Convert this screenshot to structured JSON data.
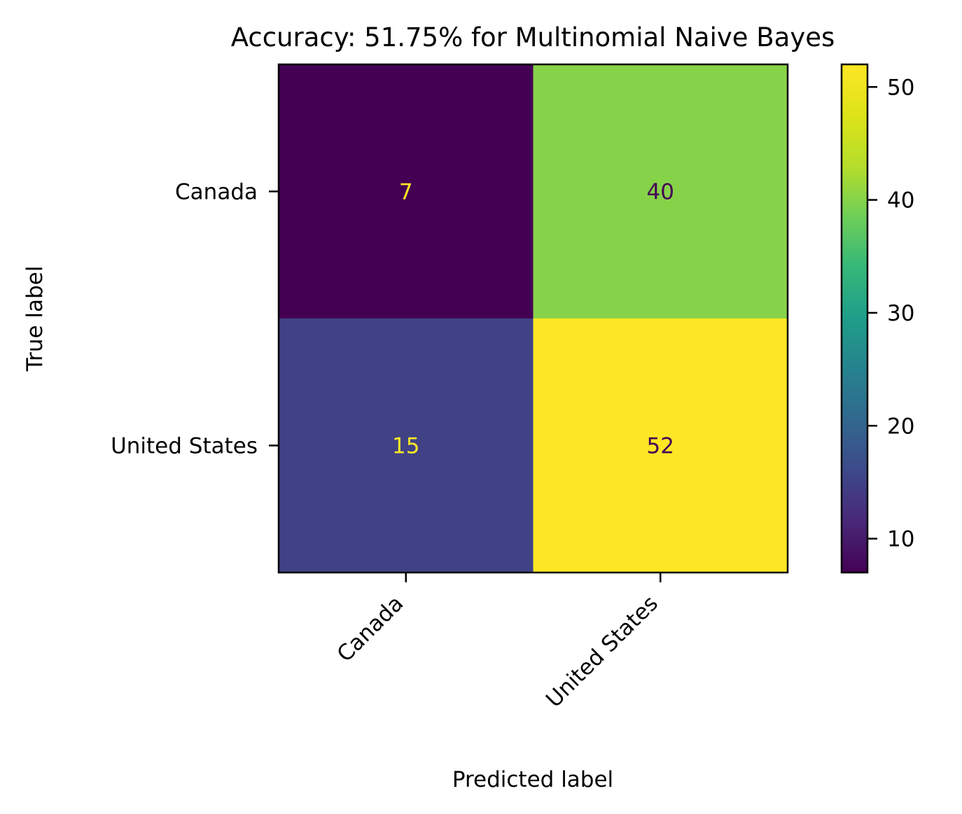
{
  "chart_data": {
    "type": "heatmap",
    "title": "Accuracy: 51.75% for Multinomial Naive Bayes",
    "xlabel": "Predicted label",
    "ylabel": "True label",
    "x_categories": [
      "Canada",
      "United States"
    ],
    "y_categories": [
      "Canada",
      "United States"
    ],
    "values": [
      [
        7,
        40
      ],
      [
        15,
        52
      ]
    ],
    "colormap": "viridis",
    "colorbar": {
      "min": 7,
      "max": 52,
      "ticks": [
        10,
        20,
        30,
        40,
        50
      ]
    },
    "annotation_colors": {
      "on_dark": "#fde725",
      "on_light": "#440154"
    }
  }
}
